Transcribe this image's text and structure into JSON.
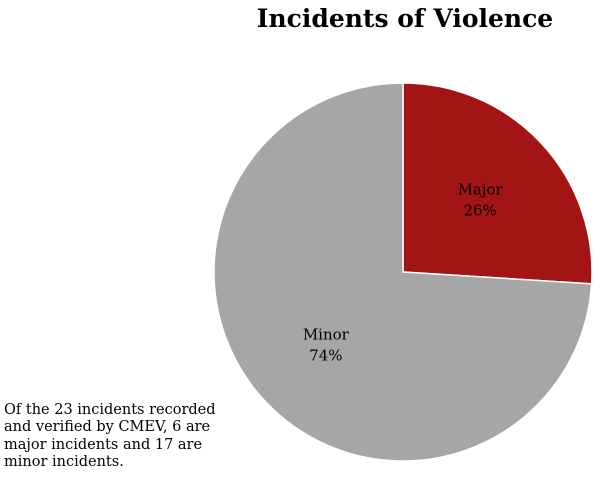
{
  "chart_data": {
    "type": "pie",
    "title": "Incidents of Violence",
    "slices": [
      {
        "label": "Major",
        "value": 26,
        "display": "26%",
        "color": "#a31515"
      },
      {
        "label": "Minor",
        "value": 74,
        "display": "74%",
        "color": "#a6a6a6"
      }
    ],
    "start_angle_deg": 0,
    "direction": "clockwise"
  },
  "caption": "Of the 23 incidents recorded and verified by CMEV, 6 are major incidents and 17 are minor incidents."
}
